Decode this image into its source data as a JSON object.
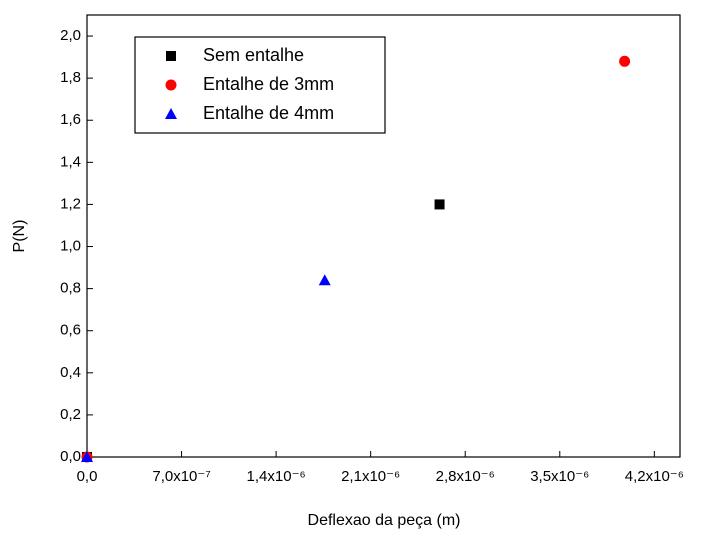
{
  "chart_data": {
    "type": "scatter",
    "xlabel": "Deflexao da peça (m)",
    "ylabel": "P(N)",
    "xlim": [
      0,
      4.39e-06
    ],
    "ylim": [
      0,
      2.1
    ],
    "xticks": [
      {
        "value": 0,
        "label": "0,0"
      },
      {
        "value": 7e-07,
        "label": "7,0x10⁻⁷"
      },
      {
        "value": 1.4e-06,
        "label": "1,4x10⁻⁶"
      },
      {
        "value": 2.1e-06,
        "label": "2,1x10⁻⁶"
      },
      {
        "value": 2.8e-06,
        "label": "2,8x10⁻⁶"
      },
      {
        "value": 3.5e-06,
        "label": "3,5x10⁻⁶"
      },
      {
        "value": 4.2e-06,
        "label": "4,2x10⁻⁶"
      }
    ],
    "yticks": [
      {
        "value": 0,
        "label": "0,0"
      },
      {
        "value": 0.2,
        "label": "0,2"
      },
      {
        "value": 0.4,
        "label": "0,4"
      },
      {
        "value": 0.6,
        "label": "0,6"
      },
      {
        "value": 0.8,
        "label": "0,8"
      },
      {
        "value": 1.0,
        "label": "1,0"
      },
      {
        "value": 1.2,
        "label": "1,2"
      },
      {
        "value": 1.4,
        "label": "1,4"
      },
      {
        "value": 1.6,
        "label": "1,6"
      },
      {
        "value": 1.8,
        "label": "1,8"
      },
      {
        "value": 2.0,
        "label": "2,0"
      }
    ],
    "legend": "upper left",
    "series": [
      {
        "name": "Sem entalhe",
        "color": "#000000",
        "marker": "square",
        "x": [
          0,
          2.61e-06
        ],
        "values": [
          0,
          1.2
        ]
      },
      {
        "name": "Entalhe de 3mm",
        "color": "#ff0000",
        "marker": "circle",
        "x": [
          0,
          3.98e-06
        ],
        "values": [
          0,
          1.88
        ]
      },
      {
        "name": "Entalhe de 4mm",
        "color": "#0000ff",
        "marker": "triangle",
        "x": [
          0,
          1.76e-06
        ],
        "values": [
          0,
          0.84
        ]
      }
    ]
  }
}
